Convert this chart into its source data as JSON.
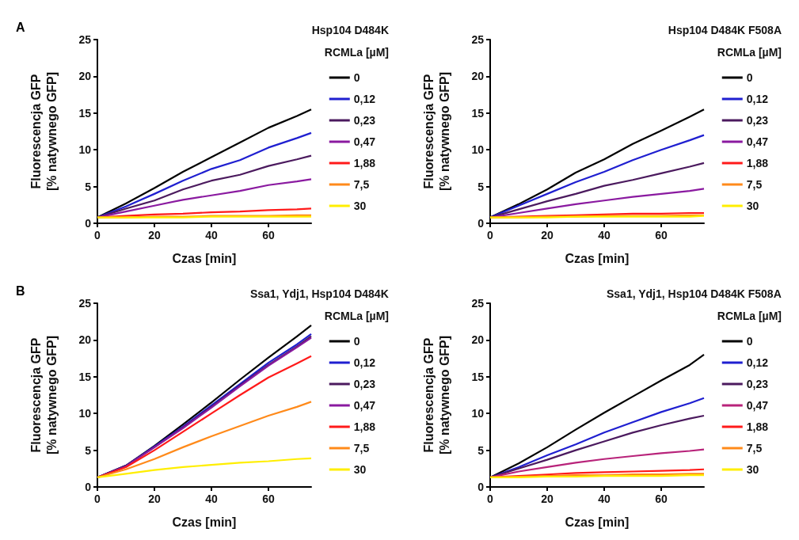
{
  "chart_data": [
    {
      "type": "line",
      "title": "Hsp104 D484K",
      "legend_title": "RCMLa [µM]",
      "annotations": [
        "A"
      ],
      "xlabel": "Czas [min]",
      "ylabel": "Fluorescencja GFP\n[% natywnego GFP]",
      "x": [
        0,
        10,
        20,
        30,
        40,
        50,
        60,
        70,
        75
      ],
      "xlim": [
        0,
        75
      ],
      "xticks": [
        0,
        20,
        40,
        60
      ],
      "ylim": [
        0,
        25
      ],
      "yticks": [
        0,
        5,
        10,
        15,
        20,
        25
      ],
      "grid": false,
      "legend": "right",
      "marker": "none",
      "line_style": "solid",
      "series": [
        {
          "name": "0",
          "color": "#000000",
          "values": [
            0.8,
            2.7,
            4.8,
            7.0,
            9.0,
            11.0,
            13.0,
            14.6,
            15.5
          ]
        },
        {
          "name": "0,12",
          "color": "#1f1fd0",
          "values": [
            0.8,
            2.3,
            4.0,
            5.8,
            7.4,
            8.6,
            10.3,
            11.6,
            12.3
          ]
        },
        {
          "name": "0,23",
          "color": "#4b1a5e",
          "values": [
            0.8,
            2.0,
            3.1,
            4.6,
            5.8,
            6.6,
            7.8,
            8.7,
            9.2
          ]
        },
        {
          "name": "0,47",
          "color": "#8a1aa0",
          "values": [
            0.8,
            1.6,
            2.4,
            3.2,
            3.8,
            4.4,
            5.2,
            5.7,
            6.0
          ]
        },
        {
          "name": "1,88",
          "color": "#ff1a1a",
          "values": [
            0.8,
            1.0,
            1.2,
            1.3,
            1.5,
            1.6,
            1.8,
            1.9,
            2.0
          ]
        },
        {
          "name": "7,5",
          "color": "#ff8a1a",
          "values": [
            0.8,
            0.8,
            0.9,
            0.9,
            1.0,
            1.0,
            1.0,
            1.1,
            1.1
          ]
        },
        {
          "name": "30",
          "color": "#ffee00",
          "values": [
            0.8,
            0.8,
            0.8,
            0.8,
            0.9,
            0.9,
            0.9,
            0.9,
            0.9
          ]
        }
      ]
    },
    {
      "type": "line",
      "title": "Hsp104 D484K F508A",
      "legend_title": "RCMLa [µM]",
      "xlabel": "Czas [min]",
      "ylabel": "Fluorescencja GFP\n[% natywnego GFP]",
      "x": [
        0,
        10,
        20,
        30,
        40,
        50,
        60,
        70,
        75
      ],
      "xlim": [
        0,
        75
      ],
      "xticks": [
        0,
        20,
        40,
        60
      ],
      "ylim": [
        0,
        25
      ],
      "yticks": [
        0,
        5,
        10,
        15,
        20,
        25
      ],
      "grid": false,
      "legend": "right",
      "marker": "none",
      "line_style": "solid",
      "series": [
        {
          "name": "0",
          "color": "#000000",
          "values": [
            0.8,
            2.6,
            4.6,
            6.9,
            8.7,
            10.8,
            12.6,
            14.5,
            15.5
          ]
        },
        {
          "name": "0,12",
          "color": "#1f1fd0",
          "values": [
            0.8,
            2.4,
            4.0,
            5.6,
            7.0,
            8.6,
            10.0,
            11.3,
            12.0
          ]
        },
        {
          "name": "0,23",
          "color": "#4b1a5e",
          "values": [
            0.8,
            1.9,
            3.0,
            4.0,
            5.1,
            5.9,
            6.8,
            7.7,
            8.2
          ]
        },
        {
          "name": "0,47",
          "color": "#8a1aa0",
          "values": [
            0.8,
            1.4,
            2.0,
            2.6,
            3.1,
            3.6,
            4.0,
            4.4,
            4.7
          ]
        },
        {
          "name": "1,88",
          "color": "#ff1a1a",
          "values": [
            0.8,
            0.9,
            1.0,
            1.1,
            1.2,
            1.3,
            1.3,
            1.4,
            1.4
          ]
        },
        {
          "name": "7,5",
          "color": "#ff8a1a",
          "values": [
            0.8,
            0.8,
            0.9,
            0.9,
            1.0,
            1.0,
            1.0,
            1.1,
            1.1
          ]
        },
        {
          "name": "30",
          "color": "#ffee00",
          "values": [
            0.8,
            0.8,
            0.8,
            0.9,
            0.9,
            0.9,
            0.9,
            0.9,
            1.0
          ]
        }
      ]
    },
    {
      "type": "line",
      "title": "Ssa1, Ydj1, Hsp104 D484K",
      "legend_title": "RCMLa [µM]",
      "annotations": [
        "B"
      ],
      "xlabel": "Czas [min]",
      "ylabel": "Fluorescencja GFP\n[% natywnego GFP]",
      "x": [
        0,
        10,
        20,
        30,
        40,
        50,
        60,
        70,
        75
      ],
      "xlim": [
        0,
        75
      ],
      "xticks": [
        0,
        20,
        40,
        60
      ],
      "ylim": [
        0,
        25
      ],
      "yticks": [
        0,
        5,
        10,
        15,
        20,
        25
      ],
      "grid": false,
      "legend": "right",
      "marker": "none",
      "line_style": "solid",
      "series": [
        {
          "name": "0",
          "color": "#000000",
          "values": [
            1.3,
            2.9,
            5.6,
            8.5,
            11.5,
            14.6,
            17.6,
            20.5,
            22.0
          ]
        },
        {
          "name": "0,12",
          "color": "#1f1fd0",
          "values": [
            1.3,
            2.9,
            5.5,
            8.2,
            11.1,
            14.0,
            16.9,
            19.4,
            20.8
          ]
        },
        {
          "name": "0,23",
          "color": "#4b1a5e",
          "values": [
            1.3,
            2.9,
            5.4,
            8.1,
            10.9,
            13.8,
            16.6,
            19.1,
            20.5
          ]
        },
        {
          "name": "0,47",
          "color": "#8a1aa0",
          "values": [
            1.3,
            2.8,
            5.4,
            8.0,
            10.8,
            13.7,
            16.5,
            19.0,
            20.3
          ]
        },
        {
          "name": "1,88",
          "color": "#ff1a1a",
          "values": [
            1.3,
            2.7,
            5.0,
            7.5,
            10.0,
            12.5,
            14.9,
            16.8,
            17.8
          ]
        },
        {
          "name": "7,5",
          "color": "#ff8a1a",
          "values": [
            1.3,
            2.4,
            3.8,
            5.4,
            6.9,
            8.3,
            9.7,
            10.9,
            11.6
          ]
        },
        {
          "name": "30",
          "color": "#ffee00",
          "values": [
            1.3,
            1.8,
            2.3,
            2.7,
            3.0,
            3.3,
            3.5,
            3.8,
            3.9
          ]
        }
      ]
    },
    {
      "type": "line",
      "title": "Ssa1, Ydj1, Hsp104 D484K F508A",
      "legend_title": "RCMLa [µM]",
      "xlabel": "Czas [min]",
      "ylabel": "Fluorescencja GFP\n[% natywnego GFP]",
      "x": [
        0,
        10,
        20,
        30,
        40,
        50,
        60,
        70,
        75
      ],
      "xlim": [
        0,
        75
      ],
      "xticks": [
        0,
        20,
        40,
        60
      ],
      "ylim": [
        0,
        25
      ],
      "yticks": [
        0,
        5,
        10,
        15,
        20,
        25
      ],
      "grid": false,
      "legend": "right",
      "marker": "none",
      "line_style": "solid",
      "series": [
        {
          "name": "0",
          "color": "#000000",
          "values": [
            1.3,
            3.2,
            5.4,
            7.8,
            10.1,
            12.3,
            14.5,
            16.6,
            18.0
          ]
        },
        {
          "name": "0,12",
          "color": "#1f1fd0",
          "values": [
            1.3,
            2.7,
            4.3,
            5.8,
            7.4,
            8.8,
            10.2,
            11.4,
            12.1
          ]
        },
        {
          "name": "0,23",
          "color": "#4b1a5e",
          "values": [
            1.3,
            2.5,
            3.7,
            5.0,
            6.2,
            7.4,
            8.4,
            9.3,
            9.7
          ]
        },
        {
          "name": "0,47",
          "color": "#b8237a",
          "values": [
            1.3,
            2.1,
            2.7,
            3.3,
            3.8,
            4.2,
            4.6,
            4.9,
            5.1
          ]
        },
        {
          "name": "1,88",
          "color": "#ff1a1a",
          "values": [
            1.3,
            1.5,
            1.7,
            1.9,
            2.0,
            2.1,
            2.2,
            2.3,
            2.4
          ]
        },
        {
          "name": "7,5",
          "color": "#ff8a1a",
          "values": [
            1.3,
            1.4,
            1.5,
            1.6,
            1.6,
            1.7,
            1.7,
            1.8,
            1.8
          ]
        },
        {
          "name": "30",
          "color": "#ffee00",
          "values": [
            1.3,
            1.3,
            1.4,
            1.4,
            1.5,
            1.5,
            1.5,
            1.6,
            1.6
          ]
        }
      ]
    }
  ]
}
